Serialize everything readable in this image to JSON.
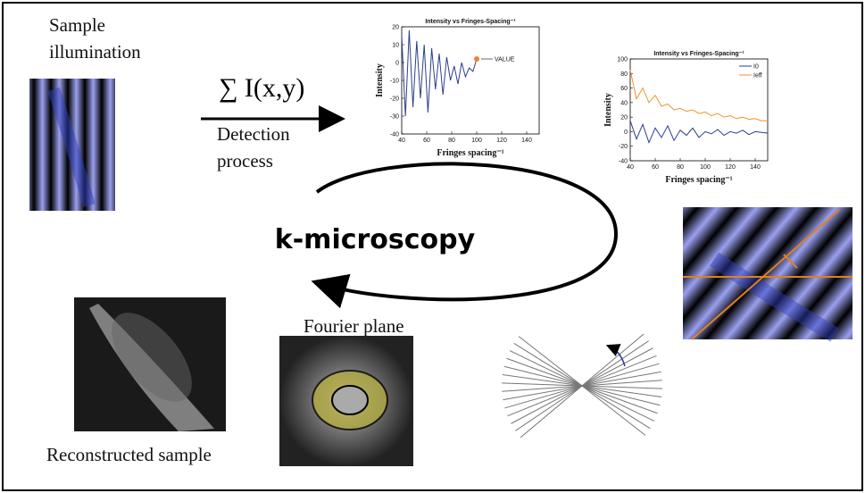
{
  "labels": {
    "sample_illumination": [
      "Sample",
      "illumination"
    ],
    "sum": "∑ I(x,y)",
    "detection": [
      "Detection",
      "process"
    ],
    "title": "k-microscopy",
    "fourier": "Fourier plane",
    "reconstructed": "Reconstructed sample"
  },
  "plots": [
    {
      "type": "line",
      "title": "Intensity vs Fringes-Spacing⁻¹",
      "x_label": "Fringes spacing⁻¹",
      "y_label": "Intensity",
      "xlim": [
        40,
        150
      ],
      "ylim": [
        -40,
        20
      ],
      "xticks": [
        40,
        60,
        80,
        100,
        120,
        140
      ],
      "yticks": [
        -40,
        -30,
        -20,
        -10,
        0,
        10,
        20
      ],
      "annotation": "VALUE",
      "series": [
        {
          "color": "#2b3f8c",
          "x": [
            40,
            43,
            46,
            49,
            52,
            55,
            58,
            61,
            64,
            67,
            70,
            73,
            76,
            79,
            82,
            85,
            88,
            91,
            94,
            97,
            100
          ],
          "values": [
            15,
            -30,
            18,
            -25,
            12,
            -20,
            10,
            -28,
            8,
            -15,
            5,
            -18,
            3,
            -10,
            -2,
            -12,
            0,
            -8,
            -3,
            -5,
            2
          ]
        }
      ]
    },
    {
      "type": "line",
      "title": "Intensity vs Fringes-Spacing⁻¹",
      "x_label": "Fringes spacing⁻¹",
      "y_label": "Intensity",
      "xlim": [
        40,
        150
      ],
      "ylim": [
        -40,
        100
      ],
      "xticks": [
        40,
        60,
        80,
        100,
        120,
        140
      ],
      "yticks": [
        -40,
        -20,
        0,
        20,
        40,
        60,
        80,
        100
      ],
      "series": [
        {
          "name": "I0",
          "color": "#2b3f8c",
          "x": [
            40,
            45,
            50,
            55,
            60,
            65,
            70,
            75,
            80,
            85,
            90,
            95,
            100,
            105,
            110,
            115,
            120,
            125,
            130,
            135,
            140,
            145,
            150
          ],
          "values": [
            15,
            -10,
            10,
            -15,
            5,
            -8,
            8,
            -12,
            2,
            -5,
            5,
            -8,
            0,
            -3,
            3,
            -5,
            0,
            -2,
            2,
            -4,
            0,
            -1,
            -2
          ]
        },
        {
          "name": "Ieff",
          "color": "#f0922e",
          "x": [
            40,
            45,
            50,
            55,
            60,
            65,
            70,
            75,
            80,
            85,
            90,
            95,
            100,
            105,
            110,
            115,
            120,
            125,
            130,
            135,
            140,
            145,
            150
          ],
          "values": [
            85,
            45,
            60,
            40,
            50,
            35,
            38,
            30,
            32,
            28,
            30,
            25,
            27,
            22,
            25,
            20,
            22,
            18,
            20,
            17,
            18,
            15,
            15
          ]
        }
      ]
    }
  ]
}
